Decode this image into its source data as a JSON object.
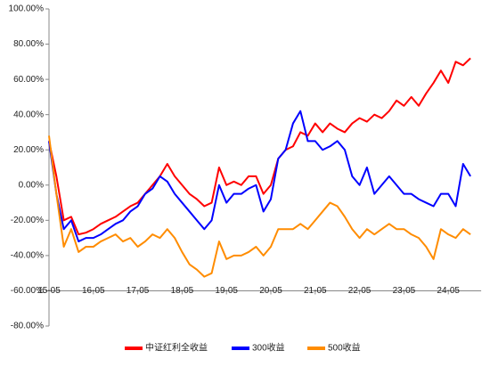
{
  "chart_data": {
    "type": "line",
    "categories": [
      "15-05",
      null,
      null,
      null,
      null,
      null,
      "16-05",
      null,
      null,
      null,
      null,
      null,
      "17-05",
      null,
      null,
      null,
      null,
      null,
      "18-05",
      null,
      null,
      null,
      null,
      null,
      "19-05",
      null,
      null,
      null,
      null,
      null,
      "20-05",
      null,
      null,
      null,
      null,
      null,
      "21-05",
      null,
      null,
      null,
      null,
      null,
      "22-05",
      null,
      null,
      null,
      null,
      null,
      "23-05",
      null,
      null,
      null,
      null,
      null,
      "24-05",
      null,
      null,
      null
    ],
    "series": [
      {
        "name": "中证红利全收益",
        "color": "#ff0000",
        "values": [
          25,
          5,
          -20,
          -18,
          -28,
          -27,
          -25,
          -22,
          -20,
          -18,
          -15,
          -12,
          -10,
          -5,
          0,
          5,
          12,
          5,
          0,
          -5,
          -8,
          -12,
          -10,
          10,
          0,
          2,
          0,
          5,
          5,
          -5,
          0,
          15,
          20,
          22,
          30,
          28,
          35,
          30,
          35,
          32,
          30,
          35,
          38,
          36,
          40,
          38,
          42,
          48,
          45,
          50,
          45,
          52,
          58,
          65,
          58,
          70,
          68,
          72
        ]
      },
      {
        "name": "300收益",
        "color": "#0000ff",
        "values": [
          25,
          -5,
          -25,
          -20,
          -32,
          -30,
          -30,
          -28,
          -25,
          -22,
          -20,
          -15,
          -12,
          -5,
          -2,
          5,
          2,
          -5,
          -10,
          -15,
          -20,
          -25,
          -20,
          0,
          -10,
          -5,
          -5,
          -2,
          0,
          -15,
          -8,
          15,
          20,
          35,
          42,
          25,
          25,
          20,
          22,
          25,
          20,
          5,
          0,
          10,
          -5,
          0,
          5,
          0,
          -5,
          -5,
          -8,
          -10,
          -12,
          -5,
          -5,
          -12,
          12,
          5
        ]
      },
      {
        "name": "500收益",
        "color": "#ff8c00",
        "values": [
          28,
          -5,
          -35,
          -25,
          -38,
          -35,
          -35,
          -32,
          -30,
          -28,
          -32,
          -30,
          -35,
          -32,
          -28,
          -30,
          -25,
          -30,
          -38,
          -45,
          -48,
          -52,
          -50,
          -32,
          -42,
          -40,
          -40,
          -38,
          -35,
          -40,
          -35,
          -25,
          -25,
          -25,
          -22,
          -25,
          -20,
          -15,
          -10,
          -12,
          -18,
          -25,
          -30,
          -25,
          -28,
          -25,
          -22,
          -25,
          -25,
          -28,
          -30,
          -35,
          -42,
          -25,
          -28,
          -30,
          -25,
          -28
        ]
      }
    ],
    "ylim": [
      -80,
      100
    ],
    "yticks": [
      {
        "value": -80,
        "label": "-80.00%"
      },
      {
        "value": -60,
        "label": "-60.00%"
      },
      {
        "value": -40,
        "label": "-40.00%"
      },
      {
        "value": -20,
        "label": "-20.00%"
      },
      {
        "value": 0,
        "label": "0.00%"
      },
      {
        "value": 20,
        "label": "20.00%"
      },
      {
        "value": 40,
        "label": "40.00%"
      },
      {
        "value": 60,
        "label": "60.00%"
      },
      {
        "value": 80,
        "label": "80.00%"
      },
      {
        "value": 100,
        "label": "100.00%"
      }
    ],
    "x_axis_crossing": -60,
    "grid": false
  }
}
